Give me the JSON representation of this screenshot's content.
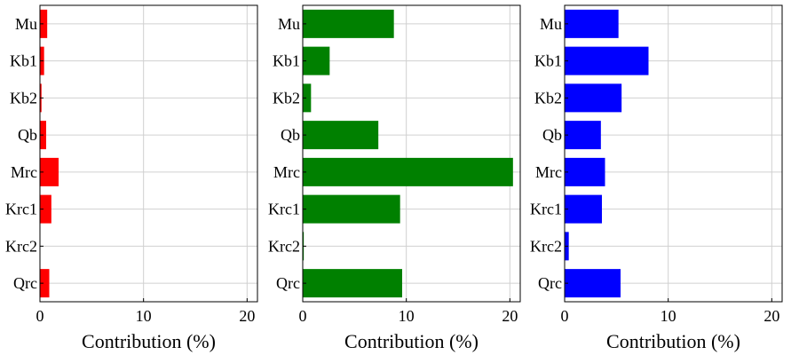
{
  "chart_data": [
    {
      "type": "bar",
      "orientation": "horizontal",
      "categories": [
        "Mu",
        "Kb1",
        "Kb2",
        "Qb",
        "Mrc",
        "Krc1",
        "Krc2",
        "Qrc"
      ],
      "values": [
        0.7,
        0.4,
        0.15,
        0.6,
        1.8,
        1.1,
        0.0,
        0.9
      ],
      "color": "#ff0000",
      "xlabel": "Contribution (%)",
      "xlim": [
        0,
        21
      ],
      "xticks": [
        0,
        10,
        20
      ],
      "grid": true
    },
    {
      "type": "bar",
      "orientation": "horizontal",
      "categories": [
        "Mu",
        "Kb1",
        "Kb2",
        "Qb",
        "Mrc",
        "Krc1",
        "Krc2",
        "Qrc"
      ],
      "values": [
        8.8,
        2.6,
        0.8,
        7.3,
        20.3,
        9.4,
        0.1,
        9.6
      ],
      "color": "#008000",
      "xlabel": "Contribution (%)",
      "xlim": [
        0,
        21
      ],
      "xticks": [
        0,
        10,
        20
      ],
      "grid": true
    },
    {
      "type": "bar",
      "orientation": "horizontal",
      "categories": [
        "Mu",
        "Kb1",
        "Kb2",
        "Qb",
        "Mrc",
        "Krc1",
        "Krc2",
        "Qrc"
      ],
      "values": [
        5.2,
        8.1,
        5.5,
        3.5,
        3.9,
        3.6,
        0.4,
        5.4
      ],
      "color": "#0000ff",
      "xlabel": "Contribution (%)",
      "xlim": [
        0,
        21
      ],
      "xticks": [
        0,
        10,
        20
      ],
      "grid": true
    }
  ]
}
